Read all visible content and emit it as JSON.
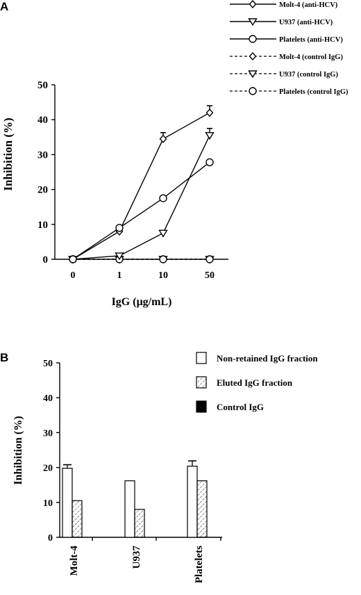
{
  "chart_data": [
    {
      "panel": "A",
      "type": "line",
      "ylabel": "Inhibition (%)",
      "xlabel": "IgG (μg/mL)",
      "categories": [
        "0",
        "1",
        "10",
        "50"
      ],
      "ylim": [
        0,
        50
      ],
      "yticks": [
        0,
        10,
        20,
        30,
        40,
        50
      ],
      "grid": false,
      "legend_position": "top-right",
      "series": [
        {
          "name": "Molt-4 (anti-HCV)",
          "marker": "diamond",
          "dash": false,
          "values": [
            0,
            8,
            34.5,
            42
          ],
          "errors": [
            null,
            null,
            1.8,
            2
          ]
        },
        {
          "name": "U937 (anti-HCV)",
          "marker": "triangle",
          "dash": false,
          "values": [
            0,
            1,
            7.5,
            35.5
          ],
          "errors": [
            null,
            null,
            null,
            2
          ]
        },
        {
          "name": "Platelets (anti-HCV)",
          "marker": "circle",
          "dash": false,
          "values": [
            0,
            9,
            17.5,
            27.8
          ],
          "errors": [
            null,
            null,
            null,
            null
          ]
        },
        {
          "name": "Molt-4 (control IgG)",
          "marker": "diamond",
          "dash": true,
          "values": [
            0,
            0,
            0,
            0
          ],
          "errors": [
            null,
            null,
            null,
            null
          ]
        },
        {
          "name": "U937 (control IgG)",
          "marker": "triangle",
          "dash": true,
          "values": [
            0,
            0,
            0,
            0
          ],
          "errors": [
            null,
            null,
            null,
            null
          ]
        },
        {
          "name": "Platelets (control IgG)",
          "marker": "circle",
          "dash": true,
          "values": [
            0,
            0,
            0,
            0
          ],
          "errors": [
            null,
            null,
            null,
            null
          ]
        }
      ]
    },
    {
      "panel": "B",
      "type": "bar",
      "ylabel": "Inhibition (%)",
      "categories": [
        "Molt-4",
        "U937",
        "Platelets"
      ],
      "ylim": [
        0,
        50
      ],
      "yticks": [
        0,
        10,
        20,
        30,
        40,
        50
      ],
      "grid": false,
      "legend_position": "top-right",
      "series": [
        {
          "name": "Non-retained IgG fraction",
          "fill": "white",
          "values": [
            19.8,
            16.2,
            20.4
          ],
          "errors": [
            1,
            null,
            1.5
          ]
        },
        {
          "name": "Eluted IgG fraction",
          "fill": "hatched",
          "values": [
            10.5,
            8,
            16.2
          ],
          "errors": [
            null,
            null,
            null
          ]
        },
        {
          "name": "Control IgG",
          "fill": "black",
          "values": [
            0,
            0,
            0
          ],
          "errors": [
            null,
            null,
            null
          ]
        }
      ]
    }
  ]
}
